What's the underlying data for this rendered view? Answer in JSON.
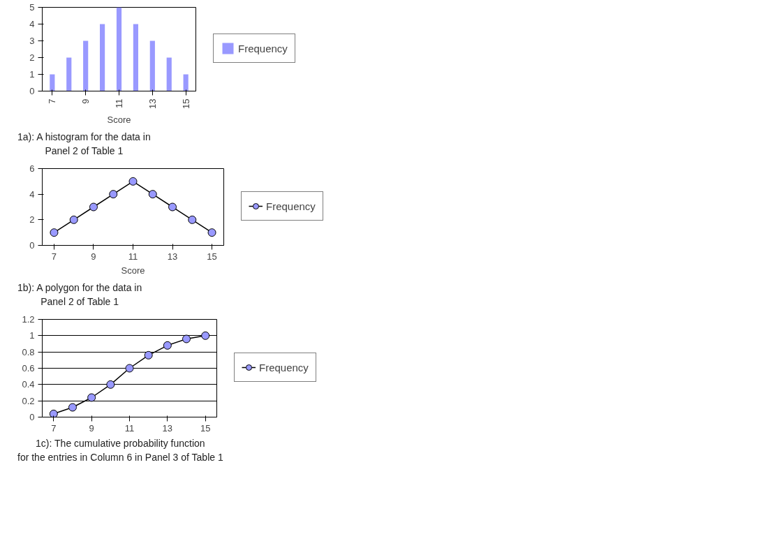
{
  "chart_data": [
    {
      "type": "bar",
      "xlabel": "Score",
      "categories": [
        "7",
        null,
        "9",
        null,
        "11",
        null,
        "13",
        null,
        "15"
      ],
      "series": [
        {
          "name": "Frequency",
          "color": "#9999ff",
          "values": [
            1,
            2,
            3,
            4,
            5,
            4,
            3,
            2,
            1
          ]
        }
      ],
      "ylim": [
        0,
        5
      ],
      "yticks": [
        0,
        1,
        2,
        3,
        4,
        5
      ],
      "grid": false,
      "legend": "right",
      "annotations": [
        "1a):  A histogram for the data in\nPanel 2 of Table 1"
      ]
    },
    {
      "type": "line",
      "xlabel": "Score",
      "categories": [
        "7",
        null,
        "9",
        null,
        "11",
        null,
        "13",
        null,
        "15"
      ],
      "series": [
        {
          "name": "Frequency",
          "color": "#9999ff",
          "values": [
            1,
            2,
            3,
            4,
            5,
            4,
            3,
            2,
            1
          ]
        }
      ],
      "ylim": [
        0,
        6
      ],
      "yticks": [
        0,
        2,
        4,
        6
      ],
      "grid": false,
      "legend": "right",
      "marker": "circle",
      "line_style": "solid",
      "annotations": [
        "1b):  A polygon for the data in\nPanel 2 of Table 1"
      ]
    },
    {
      "type": "line",
      "categories": [
        "7",
        null,
        "9",
        null,
        "11",
        null,
        "13",
        null,
        "15"
      ],
      "series": [
        {
          "name": "Frequency",
          "color": "#9999ff",
          "values": [
            0.04,
            0.12,
            0.24,
            0.4,
            0.6,
            0.76,
            0.88,
            0.96,
            1
          ]
        }
      ],
      "ylim": [
        0,
        1.2
      ],
      "yticks": [
        0,
        0.2,
        0.4,
        0.6,
        0.8,
        1,
        1.2
      ],
      "grid": "y",
      "legend": "right",
      "marker": "circle",
      "line_style": "solid",
      "annotations": [
        "1c):  The cumulative probability function\nfor the entries in Column 6 in Panel 3 of Table 1"
      ]
    }
  ]
}
